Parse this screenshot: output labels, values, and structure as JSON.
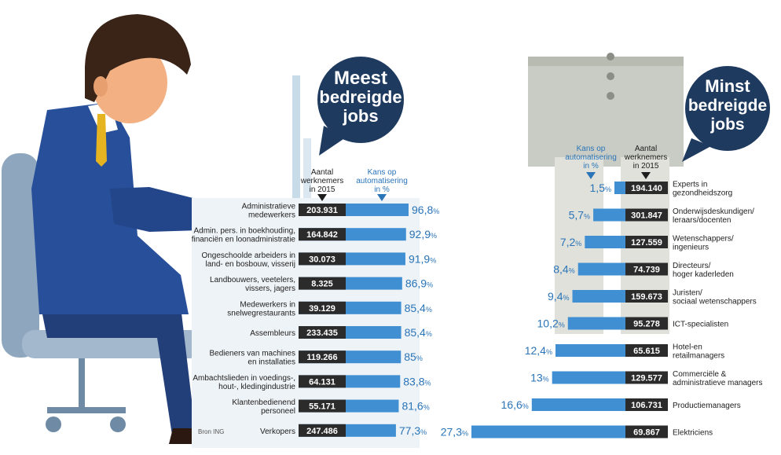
{
  "colors": {
    "bar": "#3f8fd2",
    "bar_light": "#8fc3ea",
    "value_box": "#2b2b2b",
    "bubble": "#1f3a5f",
    "pct_text": "#2a74b8",
    "label_text": "#1d1d1d",
    "suit": "#28509a",
    "skin": "#f3b183",
    "hair": "#3a2418",
    "chair": "#8aa3bc",
    "pants": "#cfd3cb"
  },
  "left": {
    "bubble_lines": [
      "Meest",
      "bedreigde",
      "jobs"
    ],
    "header_count": [
      "Aantal",
      "werknemers",
      "in 2015"
    ],
    "header_pct": [
      "Kans op",
      "automatisering",
      "in %"
    ],
    "source": "Bron ING"
  },
  "right": {
    "bubble_lines": [
      "Minst",
      "bedreigde",
      "jobs"
    ],
    "header_pct": [
      "Kans op",
      "automatisering",
      "in %"
    ],
    "header_count": [
      "Aantal",
      "werknemers",
      "in 2015"
    ]
  },
  "chart_data": [
    {
      "type": "bar",
      "title": "Meest bedreigde jobs",
      "categories": [
        [
          "Administratieve",
          "medewerkers"
        ],
        [
          "Admin. pers. in boekhouding,",
          "financiën en loonadministratie"
        ],
        [
          "Ongeschoolde arbeiders in",
          "land- en bosbouw, visserij"
        ],
        [
          "Landbouwers, veetelers,",
          "vissers, jagers"
        ],
        [
          "Medewerkers in",
          "snelwegrestaurants"
        ],
        [
          "Assembleurs"
        ],
        [
          "Bedieners van machines",
          "en installaties"
        ],
        [
          "Ambachtslieden in voedings-,",
          "hout-, kledingindustrie"
        ],
        [
          "Klantenbedienend",
          "personeel"
        ],
        [
          "Verkopers"
        ]
      ],
      "workers_labels": [
        "203.931",
        "164.842",
        "30.073",
        "8.325",
        "39.129",
        "233.435",
        "119.266",
        "64.131",
        "55.171",
        "247.486"
      ],
      "pct_labels": [
        "96,8",
        "92,9",
        "91,9",
        "86,9",
        "85,4",
        "85,4",
        "85",
        "83,8",
        "81,6",
        "77,3"
      ],
      "values": [
        96.8,
        92.9,
        91.9,
        86.9,
        85.4,
        85.4,
        85,
        83.8,
        81.6,
        77.3
      ],
      "unit": "%",
      "xlim": [
        0,
        100
      ]
    },
    {
      "type": "bar",
      "title": "Minst bedreigde jobs",
      "categories": [
        [
          "Experts in",
          "gezondheidszorg"
        ],
        [
          "Onderwijsdeskundigen/",
          "leraars/docenten"
        ],
        [
          "Wetenschappers/",
          "ingenieurs"
        ],
        [
          "Directeurs/",
          "hoger kaderleden"
        ],
        [
          "Juristen/",
          "sociaal wetenschappers"
        ],
        [
          "ICT-specialisten"
        ],
        [
          "Hotel-en",
          "retailmanagers"
        ],
        [
          "Commerciële &",
          "administratieve managers"
        ],
        [
          "Productiemanagers"
        ],
        [
          "Elektriciens"
        ]
      ],
      "workers_labels": [
        "194.140",
        "301.847",
        "127.559",
        "74.739",
        "159.673",
        "95.278",
        "65.615",
        "129.577",
        "106.731",
        "69.867"
      ],
      "pct_labels": [
        "1,5",
        "5,7",
        "7,2",
        "8,4",
        "9,4",
        "10,2",
        "12,4",
        "13",
        "16,6",
        "27,3"
      ],
      "values": [
        1.5,
        5.7,
        7.2,
        8.4,
        9.4,
        10.2,
        12.4,
        13,
        16.6,
        27.3
      ],
      "unit": "%",
      "xlim": [
        0,
        27.3
      ]
    }
  ]
}
